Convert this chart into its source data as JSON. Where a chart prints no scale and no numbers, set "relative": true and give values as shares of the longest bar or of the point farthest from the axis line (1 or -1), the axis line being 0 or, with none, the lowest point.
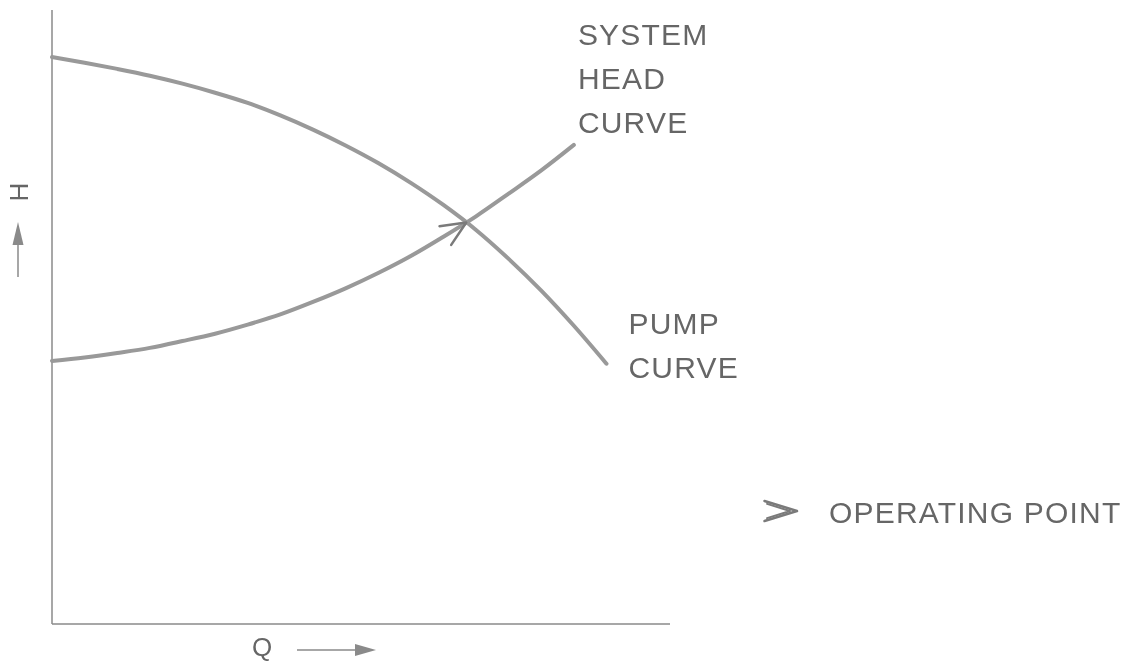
{
  "chart_data": {
    "type": "line",
    "relative": true,
    "xlabel": "Q",
    "ylabel": "H",
    "categories": [
      null,
      null,
      null,
      null,
      null,
      null,
      null,
      null,
      null,
      null,
      null,
      null,
      null,
      null,
      null,
      null,
      null,
      null
    ],
    "series": [
      {
        "name": "SYSTEM HEAD CURVE",
        "color": "#999999",
        "values": [
          0.464,
          0.47,
          0.478,
          0.487,
          0.499,
          0.512,
          0.528,
          0.546,
          0.568,
          0.592,
          0.619,
          0.649,
          0.683,
          0.719,
          0.759,
          0.8,
          0.845,
          null
        ]
      },
      {
        "name": "PUMP CURVE",
        "color": "#999999",
        "values": [
          1,
          0.99,
          0.979,
          0.967,
          0.953,
          0.937,
          0.919,
          0.897,
          0.872,
          0.844,
          0.813,
          0.778,
          0.739,
          0.695,
          0.644,
          0.588,
          0.526,
          0.459
        ]
      }
    ],
    "annotations": [
      "OPERATING POINT"
    ]
  }
}
